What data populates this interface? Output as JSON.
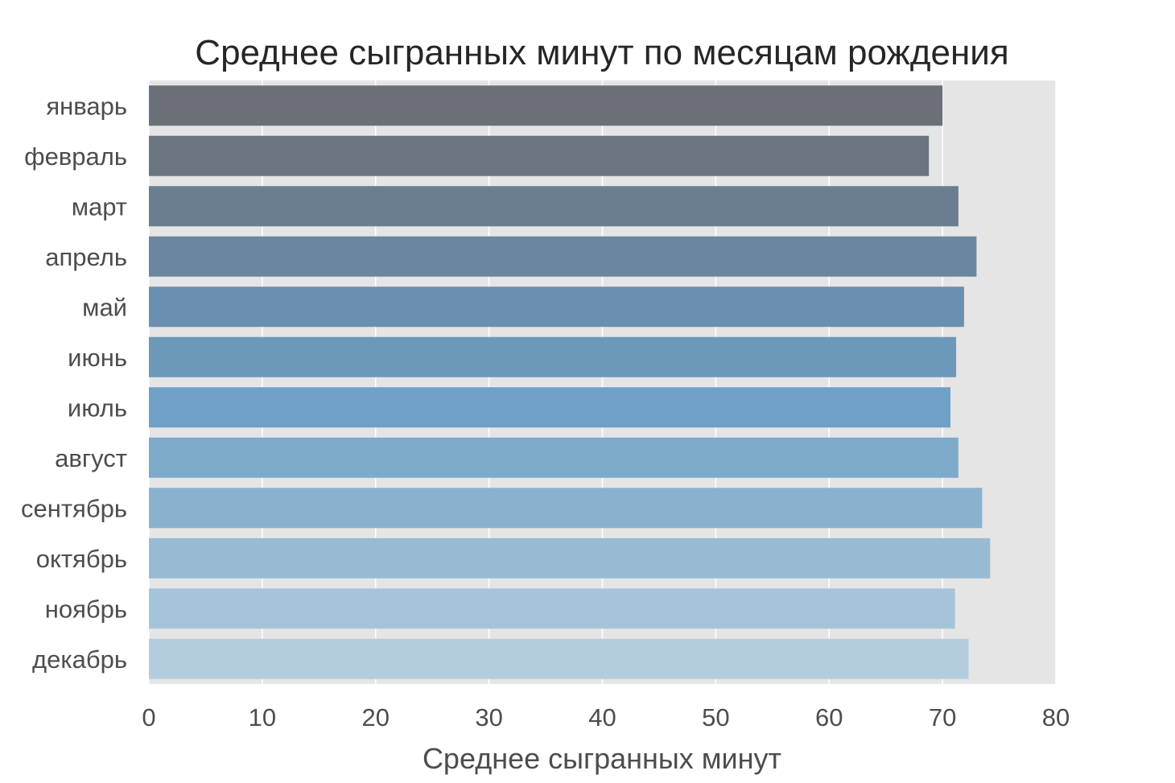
{
  "chart_data": {
    "type": "bar",
    "orientation": "horizontal",
    "title": "Среднее сыгранных минут по месяцам рождения",
    "xlabel": "Среднее сыгранных минут",
    "ylabel": "",
    "categories": [
      "январь",
      "февраль",
      "март",
      "апрель",
      "май",
      "июнь",
      "июль",
      "август",
      "сентябрь",
      "октябрь",
      "ноябрь",
      "декабрь"
    ],
    "values": [
      70.0,
      68.8,
      71.4,
      73.0,
      71.9,
      71.2,
      70.7,
      71.4,
      73.5,
      74.2,
      71.1,
      72.3
    ],
    "colors": [
      "#6b6f78",
      "#6a7580",
      "#6a7e8f",
      "#6b87a0",
      "#6b8fae",
      "#6c98ba",
      "#6fa0c5",
      "#7eaaca",
      "#8ab2cf",
      "#98bbd3",
      "#a6c4d9",
      "#b3cdde"
    ],
    "xlim": [
      0,
      80
    ],
    "xticks": [
      "0",
      "10",
      "20",
      "30",
      "40",
      "50",
      "60",
      "70",
      "80"
    ],
    "grid": true,
    "background": "#e5e5e5"
  }
}
